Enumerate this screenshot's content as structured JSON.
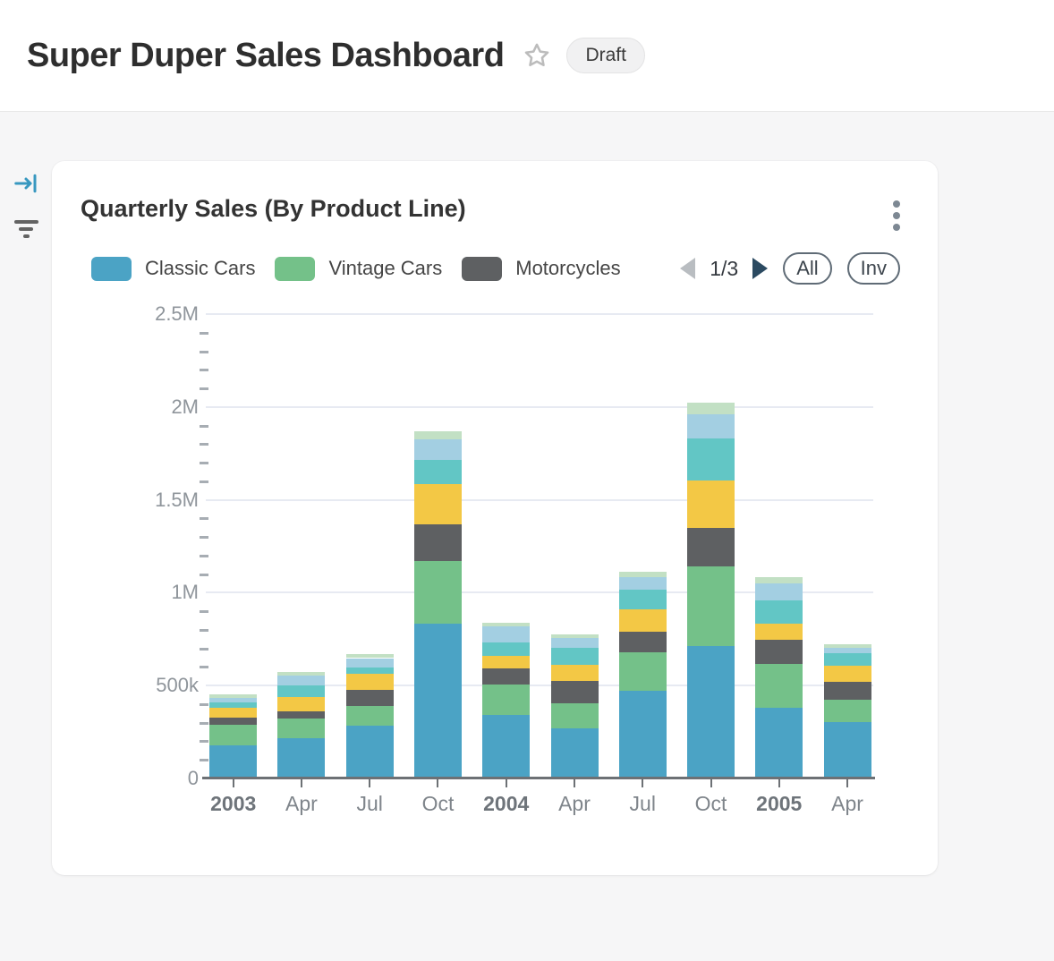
{
  "header": {
    "title": "Super Duper Sales Dashboard",
    "badge": "Draft"
  },
  "toolbar": {
    "collapse_icon": "arrow-bar-to-right",
    "collapse_color": "#3898c0",
    "filter_icon": "filter-lines",
    "filter_color": "#636363"
  },
  "card": {
    "title": "Quarterly Sales (By Product Line)",
    "menu_icon": "kebab-vertical"
  },
  "legend": {
    "items": [
      {
        "label": "Classic Cars",
        "color": "#4ba3c5"
      },
      {
        "label": "Vintage Cars",
        "color": "#74c189"
      },
      {
        "label": "Motorcycles",
        "color": "#5e6062"
      }
    ],
    "pager": {
      "current_page": "1/3",
      "prev_enabled": false,
      "next_enabled": true,
      "prev_color": "#b9bdc1",
      "next_color": "#2b4a61"
    },
    "buttons": [
      {
        "label": "All"
      },
      {
        "label": "Inv"
      }
    ]
  },
  "chart_data": {
    "type": "bar",
    "stacked": true,
    "title": "Quarterly Sales (By Product Line)",
    "xlabel": "",
    "ylabel": "",
    "ylim": [
      0,
      2500000
    ],
    "y_ticks": [
      "0",
      "500k",
      "1M",
      "1.5M",
      "2M",
      "2.5M"
    ],
    "minor_ticks_between_major": 4,
    "grid": true,
    "legend_position": "top",
    "categories": [
      {
        "label": "2003",
        "bold": true
      },
      {
        "label": "Apr",
        "bold": false
      },
      {
        "label": "Jul",
        "bold": false
      },
      {
        "label": "Oct",
        "bold": false
      },
      {
        "label": "2004",
        "bold": true
      },
      {
        "label": "Apr",
        "bold": false
      },
      {
        "label": "Jul",
        "bold": false
      },
      {
        "label": "Oct",
        "bold": false
      },
      {
        "label": "2005",
        "bold": true
      },
      {
        "label": "Apr",
        "bold": false
      }
    ],
    "series": [
      {
        "name": "Classic Cars",
        "color": "#4ba3c5",
        "legend_visible": true,
        "values": [
          177000,
          217000,
          285000,
          833000,
          340000,
          270000,
          474000,
          714000,
          382000,
          305000
        ]
      },
      {
        "name": "Vintage Cars",
        "color": "#74c189",
        "legend_visible": true,
        "values": [
          112000,
          104000,
          104000,
          340000,
          165000,
          135000,
          204000,
          429000,
          233000,
          120000
        ]
      },
      {
        "name": "Motorcycles",
        "color": "#5e6062",
        "legend_visible": true,
        "values": [
          40000,
          40000,
          88000,
          197000,
          88000,
          122000,
          112000,
          206000,
          132000,
          93000
        ]
      },
      {
        "name": "Unlabeled (yellow)",
        "color": "#f3c845",
        "legend_visible": false,
        "values": [
          53000,
          76000,
          85000,
          217000,
          69000,
          87000,
          122000,
          257000,
          88000,
          87000
        ]
      },
      {
        "name": "Unlabeled (teal)",
        "color": "#62c6c5",
        "legend_visible": false,
        "values": [
          27000,
          64000,
          35000,
          128000,
          72000,
          90000,
          103000,
          225000,
          125000,
          69000
        ]
      },
      {
        "name": "Unlabeled (light blue)",
        "color": "#a3cfe2",
        "legend_visible": false,
        "values": [
          27000,
          53000,
          51000,
          112000,
          83000,
          51000,
          69000,
          128000,
          89000,
          27000
        ]
      },
      {
        "name": "Unlabeled (pale green)",
        "color": "#c2e0c4",
        "legend_visible": false,
        "values": [
          16000,
          21000,
          21000,
          43000,
          23000,
          21000,
          27000,
          64000,
          35000,
          24000
        ]
      }
    ]
  }
}
